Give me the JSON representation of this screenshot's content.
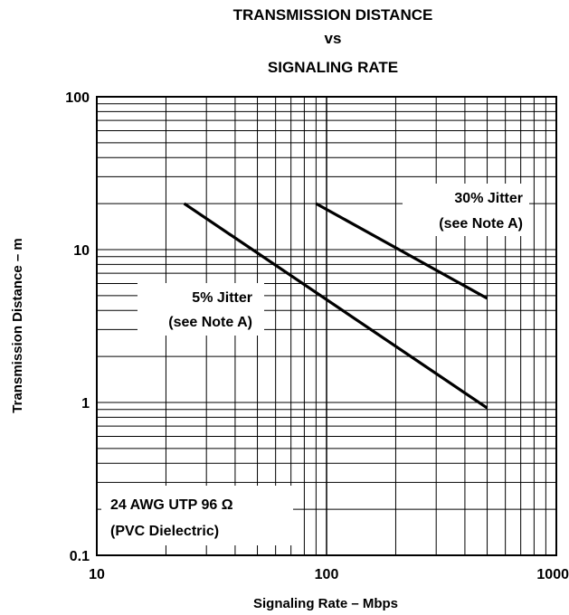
{
  "chart_data": {
    "type": "line",
    "title_lines": [
      "TRANSMISSION DISTANCE",
      "vs",
      "SIGNALING RATE"
    ],
    "xlabel": "Signaling Rate – Mbps",
    "ylabel": "Transmission Distance – m",
    "x_scale": "log",
    "y_scale": "log",
    "xlim": [
      10,
      1000
    ],
    "ylim": [
      0.1,
      100
    ],
    "x_ticks": [
      10,
      100,
      1000
    ],
    "x_tick_labels": [
      "10",
      "100",
      "1000"
    ],
    "y_ticks": [
      0.1,
      1,
      10,
      100
    ],
    "y_tick_labels": [
      "0.1",
      "1",
      "10",
      "100"
    ],
    "grid": true,
    "series": [
      {
        "label_lines": [
          "5% Jitter",
          "(see Note A)"
        ],
        "x": [
          24,
          500
        ],
        "y": [
          20,
          0.92
        ]
      },
      {
        "label_lines": [
          "30% Jitter",
          "(see Note A)"
        ],
        "x": [
          90,
          500
        ],
        "y": [
          20,
          4.8
        ]
      }
    ],
    "note_lines": [
      "24 AWG UTP 96 Ω",
      "(PVC Dielectric)"
    ]
  }
}
